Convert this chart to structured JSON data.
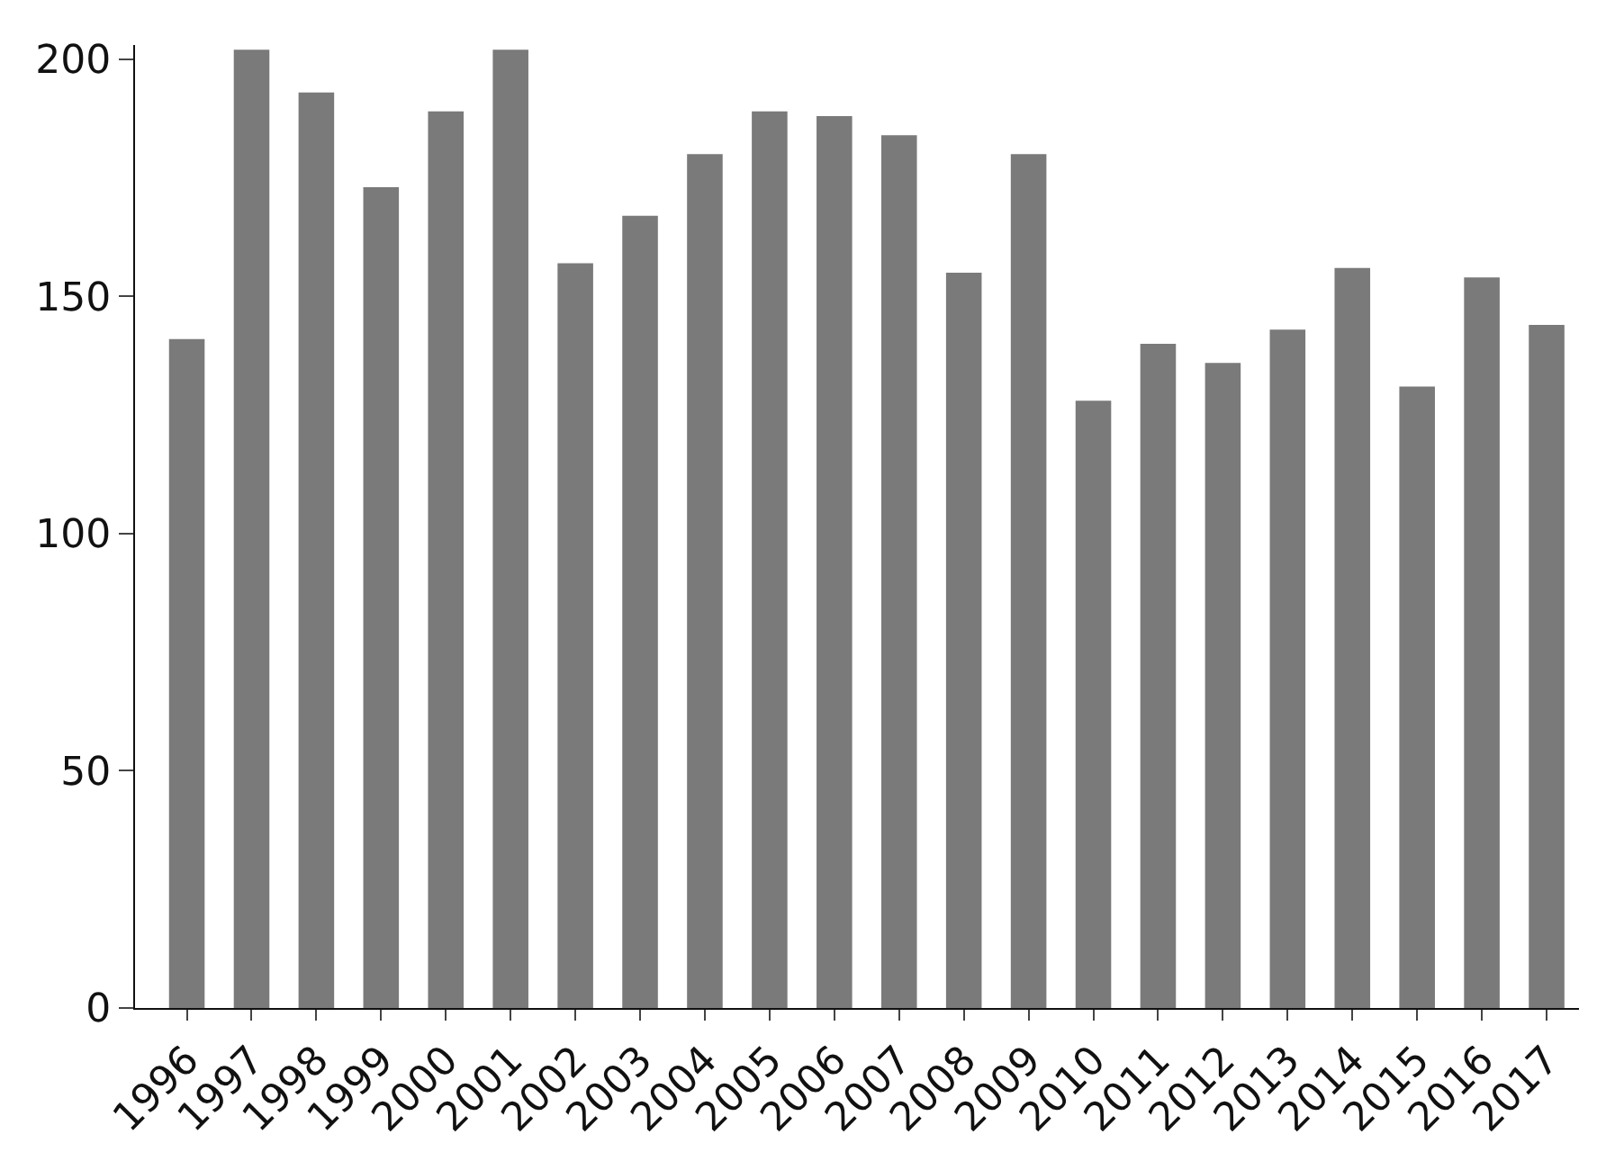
{
  "chart_data": {
    "type": "bar",
    "categories": [
      "1996",
      "1997",
      "1998",
      "1999",
      "2000",
      "2001",
      "2002",
      "2003",
      "2004",
      "2005",
      "2006",
      "2007",
      "2008",
      "2009",
      "2010",
      "2011",
      "2012",
      "2013",
      "2014",
      "2015",
      "2016",
      "2017"
    ],
    "values": [
      141,
      202,
      193,
      173,
      189,
      202,
      157,
      167,
      180,
      189,
      188,
      184,
      155,
      180,
      128,
      140,
      136,
      143,
      156,
      131,
      154,
      144
    ],
    "color": "#7a7a7a",
    "ylim": [
      0,
      203
    ],
    "yticks": [
      0,
      50,
      100,
      150,
      200
    ]
  }
}
